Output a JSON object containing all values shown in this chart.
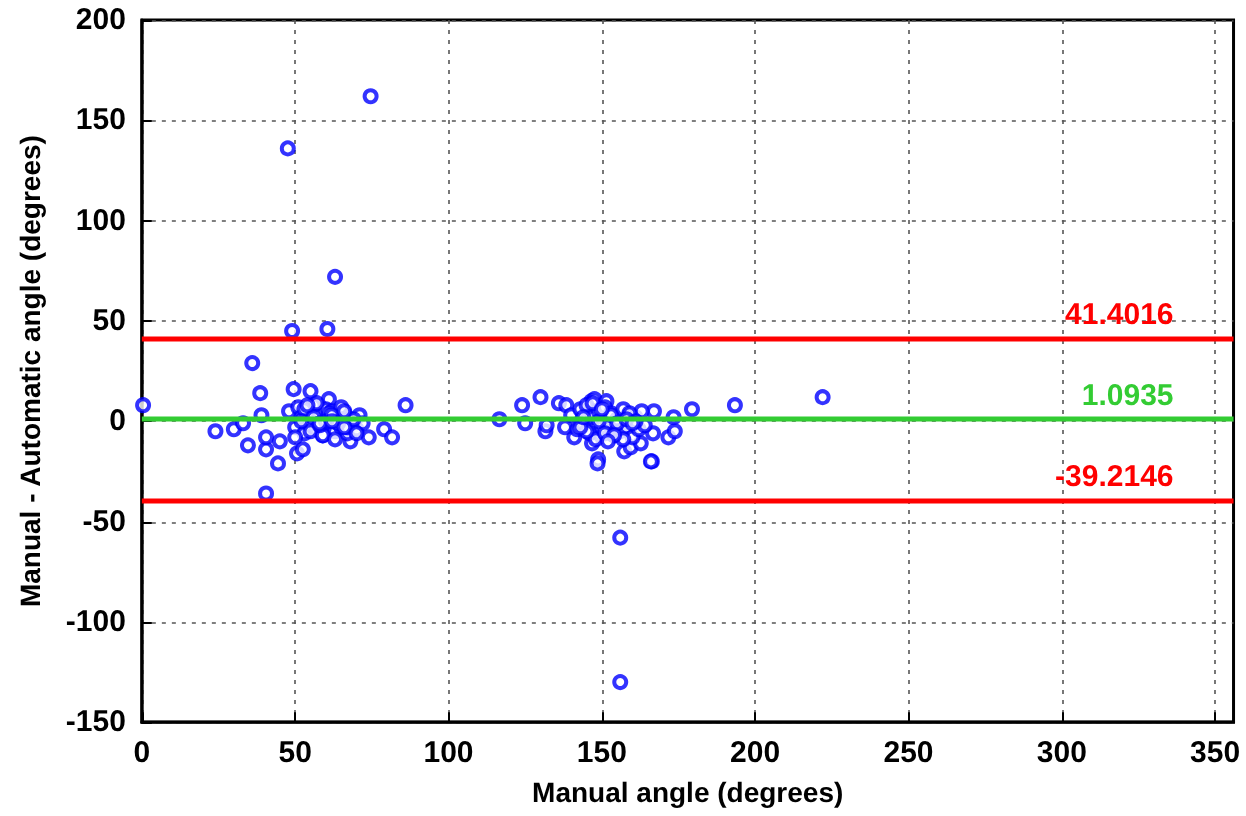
{
  "chart_data": {
    "type": "scatter",
    "xlabel": "Manual angle (degrees)",
    "ylabel": "Manual - Automatic angle (degrees)",
    "xlim": [
      0,
      356
    ],
    "xticks": [
      0,
      50,
      100,
      150,
      200,
      250,
      300,
      350
    ],
    "ylim": [
      -150,
      200
    ],
    "yticks": [
      -150,
      -100,
      -50,
      0,
      50,
      100,
      150,
      200
    ],
    "grid": true,
    "marker": "circle",
    "series": [
      {
        "color": "#0000ff",
        "x": [
          47.6,
          74.6,
          63,
          0.4,
          36,
          49,
          60.5,
          38.6,
          49.5,
          55,
          61,
          86,
          39,
          24,
          30,
          34.6,
          40.5,
          44.4,
          50.6,
          52.5,
          40.5,
          45,
          79,
          81.6,
          74,
          68,
          33,
          40.5,
          48,
          50,
          51,
          52,
          53,
          54,
          55,
          56,
          57,
          58,
          59,
          60,
          61,
          62,
          63,
          65,
          66,
          67,
          68,
          69,
          70,
          71,
          72,
          50,
          53,
          55,
          57,
          59,
          61,
          63,
          65,
          67,
          69,
          52,
          56,
          58,
          60,
          62,
          64,
          66,
          70,
          54,
          58,
          62,
          66,
          116.6,
          124,
          130,
          125,
          131.6,
          132,
          136,
          138.4,
          141,
          138,
          146.6,
          147.6,
          151.5,
          146.8,
          148.8,
          157.3,
          159.4,
          162.7,
          166.3,
          167,
          166.7,
          171.7,
          173.8,
          173.4,
          179.4,
          193.4,
          222,
          156,
          156,
          148.6,
          166,
          140,
          142,
          143,
          144,
          145,
          146,
          147,
          148,
          149,
          150,
          151,
          152,
          153,
          154,
          155,
          156,
          157,
          158,
          159,
          160,
          161,
          162,
          163,
          164,
          145,
          147,
          149,
          151,
          153,
          155,
          157,
          159,
          161,
          143,
          150,
          154,
          158,
          144,
          152,
          160
        ],
        "values": [
          136,
          162,
          72,
          8,
          29,
          45,
          46,
          14,
          16,
          15,
          11,
          8,
          3,
          -5,
          -4,
          -12,
          -14,
          -21,
          -16,
          -14,
          -8,
          -10,
          -4,
          -8,
          -8,
          -10,
          -1,
          -36,
          5,
          -3,
          7,
          2,
          -6,
          4,
          -2,
          8,
          -4,
          3,
          -7,
          6,
          -1,
          5,
          -5,
          -3,
          4,
          -6,
          1,
          -2,
          -4,
          3,
          -1,
          -8,
          6,
          -5,
          9,
          -7,
          4,
          -9,
          7,
          -3,
          1,
          0,
          2,
          -2,
          0,
          3,
          -1,
          -3,
          -6,
          8,
          -1,
          0,
          5,
          1,
          8,
          12,
          -1,
          -5,
          -2,
          9,
          8,
          -8,
          -3,
          10,
          11,
          10,
          -11,
          -19,
          -15,
          -13,
          -11,
          -20,
          5,
          -6,
          -8,
          -5,
          2,
          6,
          8,
          12,
          -58,
          -130,
          -21,
          -20,
          3,
          -4,
          6,
          -2,
          8,
          -6,
          2,
          -9,
          5,
          -3,
          7,
          -1,
          4,
          -7,
          1,
          -5,
          6,
          -3,
          3,
          -8,
          2,
          -4,
          5,
          -2,
          -5,
          9,
          0,
          -6,
          3,
          -1,
          -9,
          4,
          0,
          -3,
          6,
          -7,
          1,
          2,
          -10,
          -1
        ]
      }
    ],
    "ref_lines": [
      {
        "axis": "y",
        "value": 41.4016,
        "label": "41.4016",
        "color": "#ff0000"
      },
      {
        "axis": "y",
        "value": 1.0935,
        "label": "1.0935",
        "color": "#33cc33"
      },
      {
        "axis": "y",
        "value": -39.2146,
        "label": "-39.2146",
        "color": "#ff0000"
      }
    ]
  }
}
